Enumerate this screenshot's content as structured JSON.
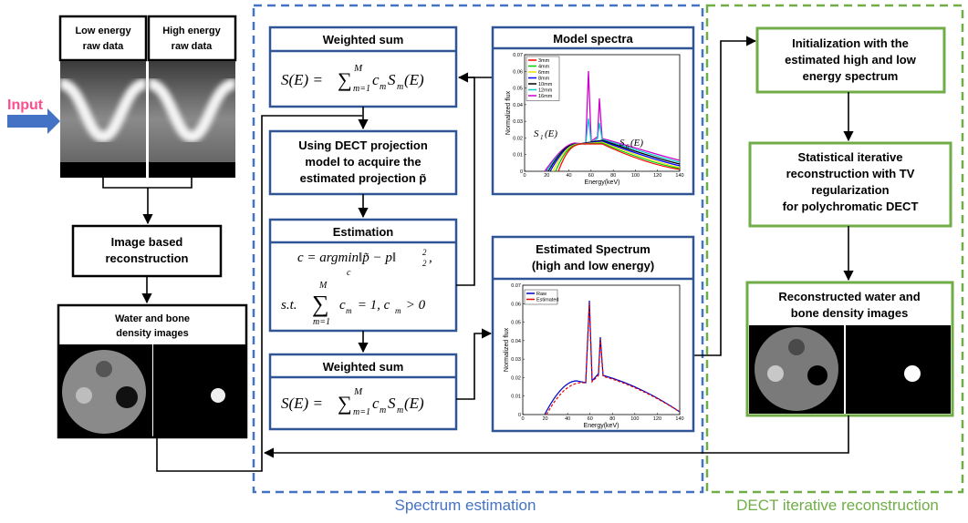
{
  "input_label": "Input",
  "low_energy": [
    "Low energy",
    "raw data"
  ],
  "high_energy": [
    "High energy",
    "raw data"
  ],
  "image_recon": [
    "Image  based",
    "reconstruction"
  ],
  "density_images": [
    "Water and bone",
    "density images"
  ],
  "weighted_sum_1": {
    "title": "Weighted sum",
    "formula": {
      "lhs": "S(E) = ",
      "sum": "∑",
      "upper": "M",
      "lower": "m=1",
      "c": "c",
      "c_sub": "m",
      "s": "S",
      "s_sub": "m",
      "tail": "(E)"
    }
  },
  "projection": [
    "Using DECT projection",
    "model to acquire the",
    "estimated projection p̃"
  ],
  "estimation": {
    "title": "Estimation",
    "line1": "c = argmin‖p̃ − p‖",
    "sup": "2",
    "sub": "2",
    "comma": ",",
    "argmin_sub": "c",
    "st": "s.t.",
    "sum": "∑",
    "upper": "M",
    "lower": "m=1",
    "c": "c",
    "c_sub": "m",
    "mid": " = 1, c",
    "c2_sub": "m",
    "end": " > 0"
  },
  "weighted_sum_2": {
    "title": "Weighted sum",
    "formula": {
      "lhs": "S(E) = ",
      "sum": "∑",
      "upper": "M",
      "lower": "m=1",
      "c": "c",
      "c_sub": "m",
      "s": "S",
      "s_sub": "m",
      "tail": "(E)"
    }
  },
  "model_spectra": {
    "title": "Model spectra",
    "xlabel": "Energy(keV)",
    "ylabel": "Normalized flux",
    "xticks": [
      0,
      20,
      40,
      60,
      80,
      100,
      120,
      140
    ],
    "yticks": [
      0,
      0.01,
      0.02,
      0.03,
      0.04,
      0.05,
      0.06,
      0.07
    ],
    "legend": [
      {
        "name": "3mm",
        "color": "#ff0000"
      },
      {
        "name": "4mm",
        "color": "#00cc00"
      },
      {
        "name": "6mm",
        "color": "#e6e600"
      },
      {
        "name": "8mm",
        "color": "#0000ff"
      },
      {
        "name": "10mm",
        "color": "#000000"
      },
      {
        "name": "12mm",
        "color": "#00cccc"
      },
      {
        "name": "16mm",
        "color": "#cc00cc"
      }
    ],
    "s1": "S",
    "s1_sub": "1",
    "s1_tail": "(E)",
    "s6": "S",
    "s6_sub": "6",
    "s6_tail": "(E)"
  },
  "estimated_spectrum": {
    "title": [
      "Estimated Spectrum",
      "(high and low energy)"
    ],
    "xlabel": "Energy(keV)",
    "ylabel": "Normalized flux",
    "xticks": [
      0,
      20,
      40,
      60,
      80,
      100,
      120,
      140
    ],
    "yticks": [
      0,
      0.01,
      0.02,
      0.03,
      0.04,
      0.05,
      0.06,
      0.07
    ],
    "legend": [
      {
        "name": "Raw",
        "color": "#0000cc"
      },
      {
        "name": "Estimated",
        "color": "#e60000"
      }
    ]
  },
  "initialization": [
    "Initialization with the",
    "estimated high and low",
    "energy spectrum"
  ],
  "statistical": [
    "Statistical iterative",
    "reconstruction with TV",
    "regularization",
    "for polychromatic DECT"
  ],
  "reconstructed": [
    "Reconstructed water and",
    "bone density images"
  ],
  "caption_spectrum": "Spectrum estimation",
  "caption_dect": "DECT iterative reconstruction"
}
